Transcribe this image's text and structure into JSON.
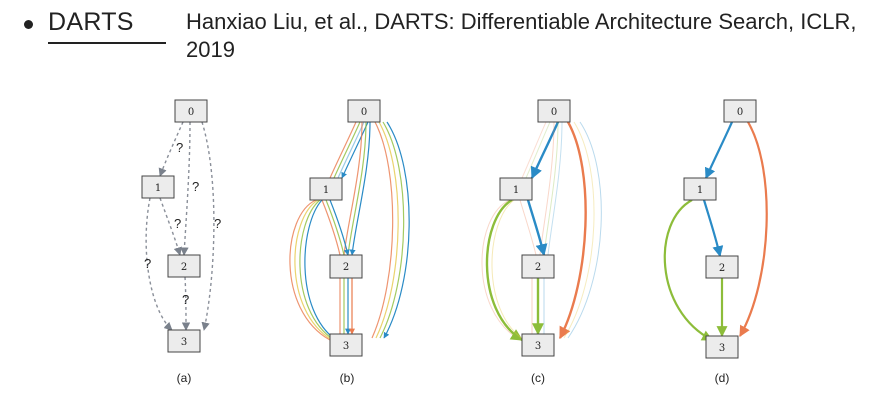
{
  "topic": "DARTS",
  "citation": "Hanxiao Liu, et al., DARTS: Differentiable Architecture Search, ICLR, 2019",
  "nodes": [
    "0",
    "1",
    "2",
    "3"
  ],
  "question_mark": "?",
  "captions": [
    "(a)",
    "(b)",
    "(c)",
    "(d)"
  ],
  "colors": {
    "node_fill": "#ececec",
    "node_border": "#444444",
    "unknown_edge": "#8a8f99",
    "op_blue": "#2a8bc6",
    "op_orange": "#ea7b4e",
    "op_green": "#8dbd3a",
    "op_red": "#d9534f",
    "op_light_blue": "#9ccbe6",
    "op_yellow": "#e6c84a"
  }
}
